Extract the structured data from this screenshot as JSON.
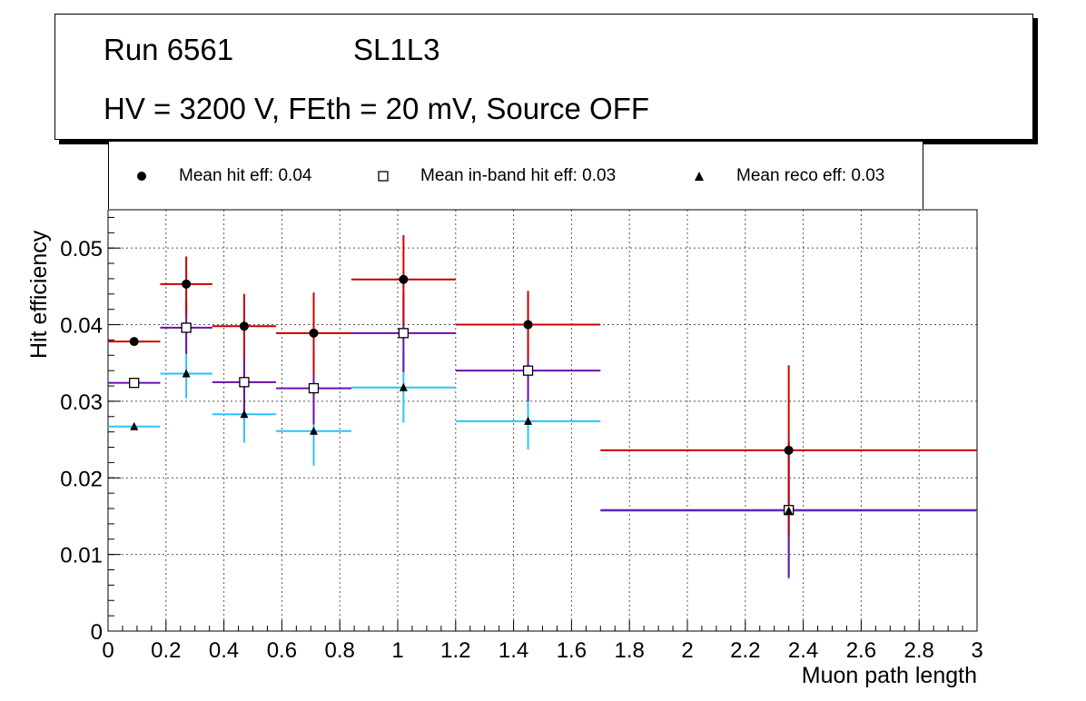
{
  "title": {
    "run": "Run 6561",
    "layer": "SL1L3",
    "conditions": "HV = 3200 V, FEth = 20 mV, Source OFF"
  },
  "colors": {
    "hit": "#cc0000",
    "inband": "#6a0dad",
    "reco": "#29c5f6",
    "marker": "#000000",
    "grid": "#555555"
  },
  "chart_data": {
    "type": "scatter",
    "xlabel": "Muon path length",
    "ylabel": "Hit efficiency",
    "xlim": [
      0,
      3
    ],
    "ylim": [
      0,
      0.055
    ],
    "xticks": [
      0,
      0.2,
      0.4,
      0.6,
      0.8,
      1,
      1.2,
      1.4,
      1.6,
      1.8,
      2,
      2.2,
      2.4,
      2.6,
      2.8,
      3
    ],
    "xtick_labels": [
      "0",
      "0.2",
      "0.4",
      "0.6",
      "0.8",
      "1",
      "1.2",
      "1.4",
      "1.6",
      "1.8",
      "2",
      "2.2",
      "2.4",
      "2.6",
      "2.8",
      "3"
    ],
    "yticks": [
      0,
      0.01,
      0.02,
      0.03,
      0.04,
      0.05
    ],
    "ytick_labels": [
      "0",
      "0.01",
      "0.02",
      "0.03",
      "0.04",
      "0.05"
    ],
    "grid": true,
    "legend": [
      {
        "label": "Mean hit  eff: 0.04",
        "marker": "circle"
      },
      {
        "label": "Mean in-band hit eff: 0.03",
        "marker": "open-square"
      },
      {
        "label": "Mean reco eff: 0.03",
        "marker": "triangle"
      }
    ],
    "series": [
      {
        "name": "hit efficiency",
        "marker": "circle",
        "points": [
          {
            "x": 0.09,
            "y": 0.0378,
            "xlo": 0.0,
            "xhi": 0.18,
            "ylo": 0.0378,
            "yhi": 0.0378
          },
          {
            "x": 0.27,
            "y": 0.0453,
            "xlo": 0.18,
            "xhi": 0.36,
            "ylo": 0.0412,
            "yhi": 0.0489
          },
          {
            "x": 0.47,
            "y": 0.0398,
            "xlo": 0.36,
            "xhi": 0.58,
            "ylo": 0.0354,
            "yhi": 0.044
          },
          {
            "x": 0.71,
            "y": 0.0389,
            "xlo": 0.58,
            "xhi": 0.84,
            "ylo": 0.0335,
            "yhi": 0.0442
          },
          {
            "x": 1.02,
            "y": 0.0459,
            "xlo": 0.84,
            "xhi": 1.2,
            "ylo": 0.04,
            "yhi": 0.0517
          },
          {
            "x": 1.45,
            "y": 0.04,
            "xlo": 1.2,
            "xhi": 1.7,
            "ylo": 0.0355,
            "yhi": 0.0444
          },
          {
            "x": 2.35,
            "y": 0.0236,
            "xlo": 1.7,
            "xhi": 3.0,
            "ylo": 0.0124,
            "yhi": 0.0347
          }
        ]
      },
      {
        "name": "in-band hit efficiency",
        "marker": "open-square",
        "points": [
          {
            "x": 0.09,
            "y": 0.0324,
            "xlo": 0.0,
            "xhi": 0.18,
            "ylo": 0.0324,
            "yhi": 0.0324
          },
          {
            "x": 0.27,
            "y": 0.0396,
            "xlo": 0.18,
            "xhi": 0.36,
            "ylo": 0.0362,
            "yhi": 0.043
          },
          {
            "x": 0.47,
            "y": 0.0325,
            "xlo": 0.36,
            "xhi": 0.58,
            "ylo": 0.0287,
            "yhi": 0.0362
          },
          {
            "x": 0.71,
            "y": 0.0317,
            "xlo": 0.58,
            "xhi": 0.84,
            "ylo": 0.027,
            "yhi": 0.0363
          },
          {
            "x": 1.02,
            "y": 0.0389,
            "xlo": 0.84,
            "xhi": 1.2,
            "ylo": 0.0338,
            "yhi": 0.044
          },
          {
            "x": 1.45,
            "y": 0.034,
            "xlo": 1.2,
            "xhi": 1.7,
            "ylo": 0.03,
            "yhi": 0.038
          },
          {
            "x": 2.35,
            "y": 0.0158,
            "xlo": 1.7,
            "xhi": 3.0,
            "ylo": 0.007,
            "yhi": 0.0246
          }
        ]
      },
      {
        "name": "reco efficiency",
        "marker": "triangle",
        "points": [
          {
            "x": 0.09,
            "y": 0.0267,
            "xlo": 0.0,
            "xhi": 0.18,
            "ylo": 0.0267,
            "yhi": 0.0267
          },
          {
            "x": 0.27,
            "y": 0.0336,
            "xlo": 0.18,
            "xhi": 0.36,
            "ylo": 0.0304,
            "yhi": 0.0367
          },
          {
            "x": 0.47,
            "y": 0.0283,
            "xlo": 0.36,
            "xhi": 0.58,
            "ylo": 0.0246,
            "yhi": 0.0319
          },
          {
            "x": 0.71,
            "y": 0.0261,
            "xlo": 0.58,
            "xhi": 0.84,
            "ylo": 0.0216,
            "yhi": 0.0302
          },
          {
            "x": 1.02,
            "y": 0.0318,
            "xlo": 0.84,
            "xhi": 1.2,
            "ylo": 0.0272,
            "yhi": 0.0363
          },
          {
            "x": 1.45,
            "y": 0.0274,
            "xlo": 1.2,
            "xhi": 1.7,
            "ylo": 0.0237,
            "yhi": 0.031
          },
          {
            "x": 2.35,
            "y": 0.0157,
            "xlo": 1.7,
            "xhi": 3.0,
            "ylo": 0.0068,
            "yhi": 0.0246
          }
        ]
      }
    ]
  }
}
